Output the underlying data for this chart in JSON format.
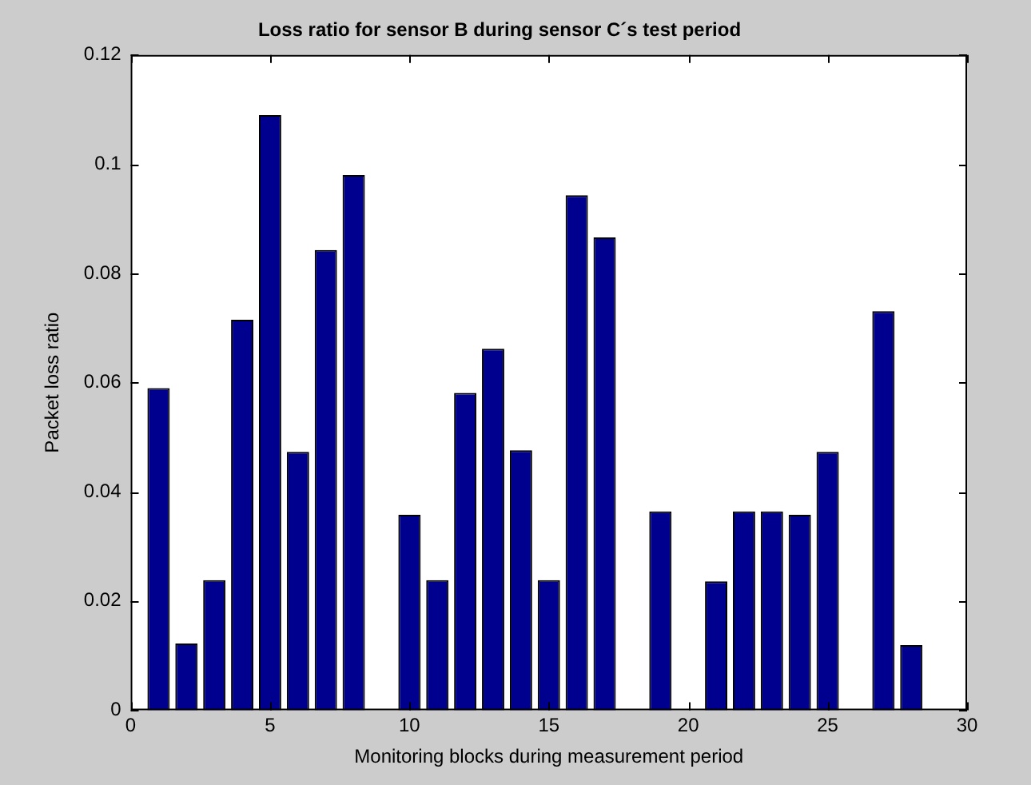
{
  "chart_data": {
    "type": "bar",
    "title": "Loss ratio for sensor B during sensor C´s test period",
    "xlabel": "Monitoring blocks during measurement period",
    "ylabel": "Packet loss ratio",
    "x": [
      1,
      2,
      3,
      4,
      5,
      6,
      7,
      8,
      9,
      10,
      11,
      12,
      13,
      14,
      15,
      16,
      17,
      18,
      19,
      20,
      21,
      22,
      23,
      24,
      25,
      26,
      27,
      28
    ],
    "values": [
      0.059,
      0.0122,
      0.0238,
      0.0715,
      0.109,
      0.0473,
      0.0843,
      0.098,
      0,
      0.0358,
      0.0238,
      0.0581,
      0.0662,
      0.0476,
      0.0238,
      0.0943,
      0.0866,
      0,
      0.0364,
      0,
      0.0236,
      0.0364,
      0.0364,
      0.0358,
      0.0473,
      0,
      0.0731,
      0.0119
    ],
    "color": "#00008f",
    "xlim": [
      0,
      30
    ],
    "xticks": [
      0,
      5,
      10,
      15,
      20,
      25,
      30
    ],
    "ylim": [
      0,
      0.12
    ],
    "yticks": [
      0,
      0.02,
      0.04,
      0.06,
      0.08,
      0.1,
      0.12
    ],
    "grid": false,
    "legend": false
  }
}
